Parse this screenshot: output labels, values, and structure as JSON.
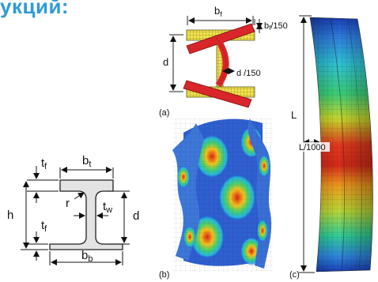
{
  "heading": "укций:",
  "beam_section": {
    "tf_top": "t",
    "tf_top_sub": "f",
    "bt": "b",
    "bt_sub": "t",
    "r": "r",
    "tw": "t",
    "tw_sub": "w",
    "h": "h",
    "d": "d",
    "tf_bottom": "t",
    "tf_bottom_sub": "f",
    "bb": "b",
    "bb_sub": "b"
  },
  "panel_a": {
    "label": "(a)",
    "bf": "b",
    "bf_sub": "f",
    "bf_tol": "b",
    "bf_tol_sub": "f",
    "bf_tol_suffix": "/150",
    "d": "d",
    "d_tol": "d /150"
  },
  "panel_b": {
    "label": "(b)"
  },
  "panel_c": {
    "label": "(c)",
    "L": "L",
    "L_tol": "L/1000"
  }
}
